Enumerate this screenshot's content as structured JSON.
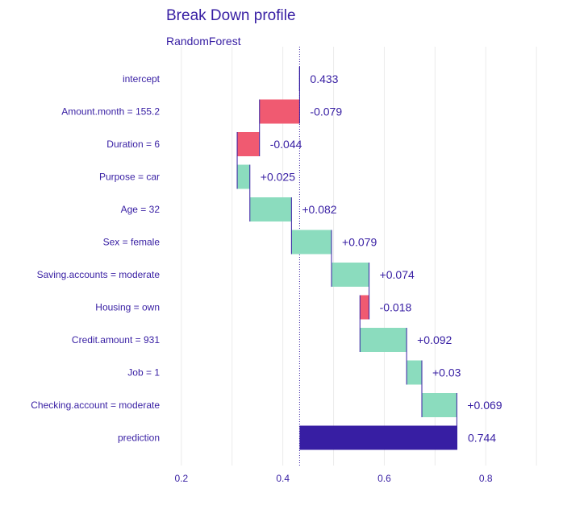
{
  "chart_data": {
    "type": "waterfall",
    "title": "Break Down profile",
    "subtitle": "RandomForest",
    "xlim": [
      0.17,
      0.93
    ],
    "x_ticks": [
      0.2,
      0.4,
      0.6,
      0.8
    ],
    "x_tick_labels": [
      "0.2",
      "0.4",
      "0.6",
      "0.8"
    ],
    "grid": true,
    "colors": {
      "positive": "#8bdcbe",
      "negative": "#f05a71",
      "prediction": "#371ea3",
      "connector": "#371ea3",
      "text": "#371ea3"
    },
    "intercept_value": 0.433,
    "rows": [
      {
        "variable": "intercept",
        "contribution": 0.433,
        "label": "0.433",
        "kind": "intercept"
      },
      {
        "variable": "Amount.month = 155.2",
        "contribution": -0.079,
        "label": "-0.079",
        "kind": "negative"
      },
      {
        "variable": "Duration = 6",
        "contribution": -0.044,
        "label": "-0.044",
        "kind": "negative"
      },
      {
        "variable": "Purpose = car",
        "contribution": 0.025,
        "label": "+0.025",
        "kind": "positive"
      },
      {
        "variable": "Age = 32",
        "contribution": 0.082,
        "label": "+0.082",
        "kind": "positive"
      },
      {
        "variable": "Sex = female",
        "contribution": 0.079,
        "label": "+0.079",
        "kind": "positive"
      },
      {
        "variable": "Saving.accounts = moderate",
        "contribution": 0.074,
        "label": "+0.074",
        "kind": "positive"
      },
      {
        "variable": "Housing = own",
        "contribution": -0.018,
        "label": "-0.018",
        "kind": "negative"
      },
      {
        "variable": "Credit.amount = 931",
        "contribution": 0.092,
        "label": "+0.092",
        "kind": "positive"
      },
      {
        "variable": "Job = 1",
        "contribution": 0.03,
        "label": "+0.03",
        "kind": "positive"
      },
      {
        "variable": "Checking.account = moderate",
        "contribution": 0.069,
        "label": "+0.069",
        "kind": "positive"
      },
      {
        "variable": "prediction",
        "contribution": 0.744,
        "label": "0.744",
        "kind": "prediction"
      }
    ]
  }
}
